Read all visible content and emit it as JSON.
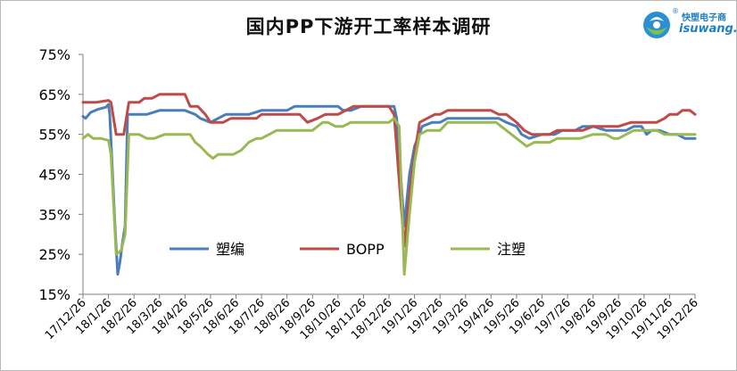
{
  "logo": {
    "cn": "快塑电子商",
    "en": "isuwang.co",
    "reg": "®"
  },
  "chart_data": {
    "type": "line",
    "title": "国内PP下游开工率样本调研",
    "xlabel": "",
    "ylabel": "",
    "ylim": [
      15,
      75
    ],
    "yticks": [
      "75%",
      "65%",
      "55%",
      "45%",
      "35%",
      "25%",
      "15%"
    ],
    "grid": false,
    "legend_position": "inside-bottom",
    "x_categories": [
      "17/12/26",
      "18/1/26",
      "18/2/26",
      "18/3/26",
      "18/4/26",
      "18/5/26",
      "18/6/26",
      "18/7/26",
      "18/8/26",
      "18/9/26",
      "18/10/26",
      "18/11/26",
      "18/12/26",
      "19/1/26",
      "19/2/26",
      "19/3/26",
      "19/4/26",
      "19/5/26",
      "19/6/26",
      "19/7/26",
      "19/8/26",
      "19/9/26",
      "19/10/26",
      "19/11/26",
      "19/12/26"
    ],
    "series": [
      {
        "name": "塑编",
        "color": "#4a7ebb",
        "points": [
          [
            0,
            59.5
          ],
          [
            0.1,
            59
          ],
          [
            0.3,
            60.5
          ],
          [
            0.6,
            61.3
          ],
          [
            0.9,
            61.8
          ],
          [
            1.0,
            62.5
          ],
          [
            1.05,
            60
          ],
          [
            1.25,
            33
          ],
          [
            1.36,
            20
          ],
          [
            1.45,
            23
          ],
          [
            1.55,
            28
          ],
          [
            1.65,
            32
          ],
          [
            1.75,
            60
          ],
          [
            2.0,
            60
          ],
          [
            2.5,
            60
          ],
          [
            3.0,
            61
          ],
          [
            3.5,
            61
          ],
          [
            4.0,
            61
          ],
          [
            4.4,
            60
          ],
          [
            4.6,
            59
          ],
          [
            5.0,
            58
          ],
          [
            5.3,
            59
          ],
          [
            5.6,
            60
          ],
          [
            6.0,
            60
          ],
          [
            6.5,
            60
          ],
          [
            7.0,
            61
          ],
          [
            7.5,
            61
          ],
          [
            8.0,
            61
          ],
          [
            8.3,
            62
          ],
          [
            8.7,
            62
          ],
          [
            9.5,
            62
          ],
          [
            10.0,
            62
          ],
          [
            10.2,
            61
          ],
          [
            10.5,
            61
          ],
          [
            10.9,
            62
          ],
          [
            11.5,
            62
          ],
          [
            12.0,
            62
          ],
          [
            12.2,
            62
          ],
          [
            12.3,
            59
          ],
          [
            12.6,
            32
          ],
          [
            12.8,
            45
          ],
          [
            13.0,
            52
          ],
          [
            13.3,
            57
          ],
          [
            13.7,
            58
          ],
          [
            14.0,
            58
          ],
          [
            14.3,
            59
          ],
          [
            15.0,
            59
          ],
          [
            15.5,
            59
          ],
          [
            16.0,
            59
          ],
          [
            16.3,
            59
          ],
          [
            16.6,
            58
          ],
          [
            17.0,
            57
          ],
          [
            17.2,
            55
          ],
          [
            17.5,
            54
          ],
          [
            18.0,
            55
          ],
          [
            18.5,
            55
          ],
          [
            18.8,
            56
          ],
          [
            19.0,
            56
          ],
          [
            19.3,
            56
          ],
          [
            19.6,
            57
          ],
          [
            20.0,
            57
          ],
          [
            20.5,
            56
          ],
          [
            21.0,
            56
          ],
          [
            21.3,
            56
          ],
          [
            21.6,
            57
          ],
          [
            21.9,
            57
          ],
          [
            22.1,
            55
          ],
          [
            22.3,
            56
          ],
          [
            22.6,
            56
          ],
          [
            23.0,
            55
          ],
          [
            23.3,
            55
          ],
          [
            23.6,
            54
          ],
          [
            24.0,
            54
          ]
        ]
      },
      {
        "name": "BOPP",
        "color": "#be4b48",
        "points": [
          [
            0,
            63
          ],
          [
            0.5,
            63
          ],
          [
            1.0,
            63.5
          ],
          [
            1.1,
            63
          ],
          [
            1.3,
            55
          ],
          [
            1.6,
            55
          ],
          [
            1.8,
            63
          ],
          [
            2.2,
            63
          ],
          [
            2.4,
            64
          ],
          [
            2.7,
            64
          ],
          [
            3.0,
            65
          ],
          [
            3.5,
            65
          ],
          [
            4.0,
            65
          ],
          [
            4.2,
            62
          ],
          [
            4.5,
            62
          ],
          [
            4.8,
            60
          ],
          [
            5.0,
            58
          ],
          [
            5.5,
            58
          ],
          [
            5.8,
            59
          ],
          [
            6.5,
            59
          ],
          [
            6.8,
            59
          ],
          [
            7.0,
            60
          ],
          [
            7.5,
            60
          ],
          [
            8.0,
            60
          ],
          [
            8.5,
            60
          ],
          [
            8.8,
            58
          ],
          [
            9.2,
            59
          ],
          [
            9.5,
            60
          ],
          [
            10.0,
            60
          ],
          [
            10.3,
            61
          ],
          [
            10.6,
            62
          ],
          [
            11.0,
            62
          ],
          [
            11.5,
            62
          ],
          [
            12.0,
            62
          ],
          [
            12.2,
            60
          ],
          [
            12.6,
            27
          ],
          [
            12.8,
            40
          ],
          [
            13.0,
            50
          ],
          [
            13.2,
            58
          ],
          [
            13.5,
            59
          ],
          [
            13.8,
            60
          ],
          [
            14.0,
            60
          ],
          [
            14.3,
            61
          ],
          [
            15.0,
            61
          ],
          [
            15.5,
            61
          ],
          [
            16.0,
            61
          ],
          [
            16.3,
            60
          ],
          [
            16.6,
            60
          ],
          [
            17.0,
            58
          ],
          [
            17.3,
            56
          ],
          [
            17.6,
            55
          ],
          [
            18.0,
            55
          ],
          [
            18.3,
            55
          ],
          [
            18.6,
            56
          ],
          [
            19.0,
            56
          ],
          [
            19.3,
            56
          ],
          [
            19.6,
            56
          ],
          [
            20.0,
            57
          ],
          [
            20.5,
            57
          ],
          [
            21.0,
            57
          ],
          [
            21.5,
            58
          ],
          [
            22.0,
            58
          ],
          [
            22.5,
            58
          ],
          [
            22.8,
            59
          ],
          [
            23.0,
            60
          ],
          [
            23.3,
            60
          ],
          [
            23.5,
            61
          ],
          [
            23.8,
            61
          ],
          [
            24.0,
            60
          ]
        ]
      },
      {
        "name": "注塑",
        "color": "#98b954",
        "points": [
          [
            0,
            54
          ],
          [
            0.2,
            55
          ],
          [
            0.4,
            54
          ],
          [
            0.7,
            54
          ],
          [
            1.0,
            53.5
          ],
          [
            1.1,
            50
          ],
          [
            1.3,
            25
          ],
          [
            1.5,
            26
          ],
          [
            1.65,
            30
          ],
          [
            1.8,
            55
          ],
          [
            2.2,
            55
          ],
          [
            2.5,
            54
          ],
          [
            2.8,
            54
          ],
          [
            3.2,
            55
          ],
          [
            3.7,
            55
          ],
          [
            4.2,
            55
          ],
          [
            4.4,
            53
          ],
          [
            4.6,
            52
          ],
          [
            4.9,
            50
          ],
          [
            5.1,
            49
          ],
          [
            5.3,
            50
          ],
          [
            5.6,
            50
          ],
          [
            5.9,
            50
          ],
          [
            6.2,
            51
          ],
          [
            6.5,
            53
          ],
          [
            6.8,
            54
          ],
          [
            7.0,
            54
          ],
          [
            7.3,
            55
          ],
          [
            7.6,
            56
          ],
          [
            8.0,
            56
          ],
          [
            8.5,
            56
          ],
          [
            9.0,
            56
          ],
          [
            9.2,
            57
          ],
          [
            9.4,
            58
          ],
          [
            9.6,
            58
          ],
          [
            9.9,
            57
          ],
          [
            10.2,
            57
          ],
          [
            10.5,
            58
          ],
          [
            11.0,
            58
          ],
          [
            11.5,
            58
          ],
          [
            12.0,
            58
          ],
          [
            12.2,
            59
          ],
          [
            12.4,
            57
          ],
          [
            12.6,
            20
          ],
          [
            12.8,
            35
          ],
          [
            13.0,
            48
          ],
          [
            13.2,
            55
          ],
          [
            13.5,
            56
          ],
          [
            14.0,
            56
          ],
          [
            14.3,
            58
          ],
          [
            15.0,
            58
          ],
          [
            15.5,
            58
          ],
          [
            16.0,
            58
          ],
          [
            16.2,
            58
          ],
          [
            16.6,
            56
          ],
          [
            17.0,
            54
          ],
          [
            17.2,
            53
          ],
          [
            17.4,
            52
          ],
          [
            17.7,
            53
          ],
          [
            18.0,
            53
          ],
          [
            18.3,
            53
          ],
          [
            18.6,
            54
          ],
          [
            19.0,
            54
          ],
          [
            19.5,
            54
          ],
          [
            20.0,
            55
          ],
          [
            20.5,
            55
          ],
          [
            20.8,
            54
          ],
          [
            21.0,
            54
          ],
          [
            21.3,
            55
          ],
          [
            21.6,
            56
          ],
          [
            21.9,
            56
          ],
          [
            22.2,
            56
          ],
          [
            22.5,
            56
          ],
          [
            22.8,
            55
          ],
          [
            23.2,
            55
          ],
          [
            23.6,
            55
          ],
          [
            24.0,
            55
          ]
        ]
      }
    ]
  }
}
